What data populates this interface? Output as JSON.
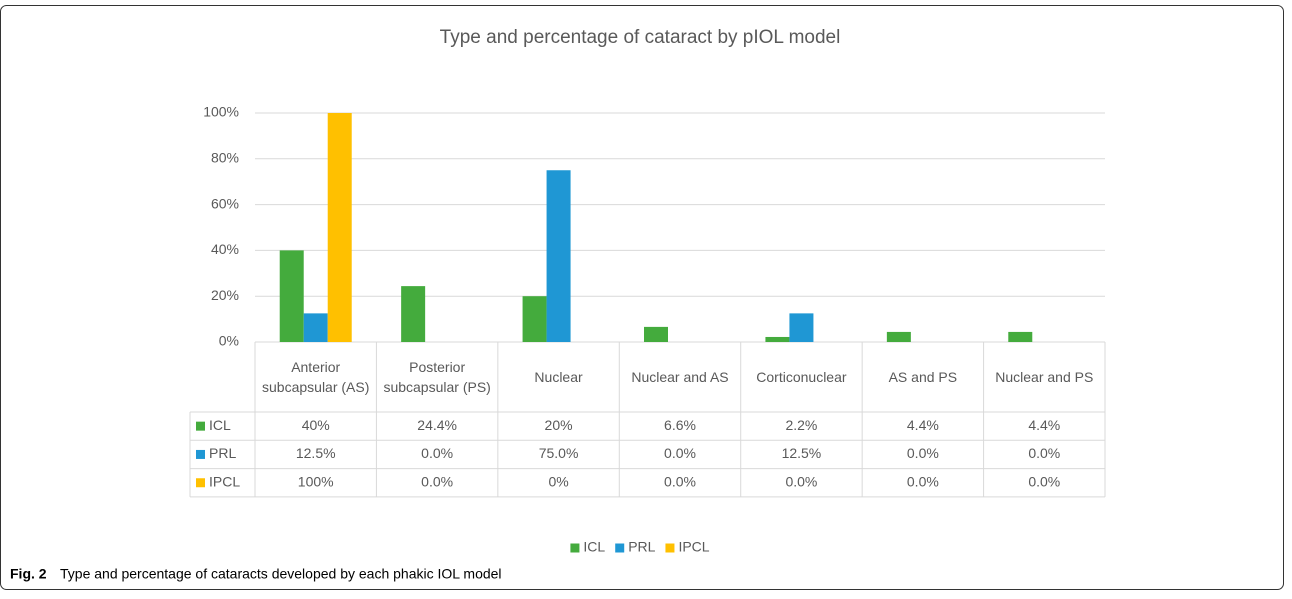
{
  "chart_data": {
    "type": "bar",
    "title": "Type and percentage of cataract by pIOL model",
    "categories": [
      "Anterior subcapsular (AS)",
      "Posterior subcapsular (PS)",
      "Nuclear",
      "Nuclear and AS",
      "Corticonuclear",
      "AS and PS",
      "Nuclear and PS"
    ],
    "series": [
      {
        "name": "ICL",
        "color": "#44ab3d",
        "values": [
          40,
          24.4,
          20,
          6.6,
          2.2,
          4.4,
          4.4
        ],
        "value_labels": [
          "40%",
          "24.4%",
          "20%",
          "6.6%",
          "2.2%",
          "4.4%",
          "4.4%"
        ]
      },
      {
        "name": "PRL",
        "color": "#1f97d4",
        "values": [
          12.5,
          0,
          75,
          0,
          12.5,
          0,
          0
        ],
        "value_labels": [
          "12.5%",
          "0.0%",
          "75.0%",
          "0.0%",
          "12.5%",
          "0.0%",
          "0.0%"
        ]
      },
      {
        "name": "IPCL",
        "color": "#ffc000",
        "values": [
          100,
          0,
          0,
          0,
          0,
          0,
          0
        ],
        "value_labels": [
          "100%",
          "0.0%",
          "0%",
          "0.0%",
          "0.0%",
          "0.0%",
          "0.0%"
        ]
      }
    ],
    "ylim": [
      0,
      100
    ],
    "yticks": [
      {
        "value": 0,
        "label": "0%"
      },
      {
        "value": 20,
        "label": "20%"
      },
      {
        "value": 40,
        "label": "40%"
      },
      {
        "value": 60,
        "label": "60%"
      },
      {
        "value": 80,
        "label": "80%"
      },
      {
        "value": 100,
        "label": "100%"
      }
    ],
    "grid": true,
    "legend": "bottom"
  },
  "caption_label": "Fig. 2",
  "caption": "Type and percentage of cataracts developed by each phakic IOL model"
}
